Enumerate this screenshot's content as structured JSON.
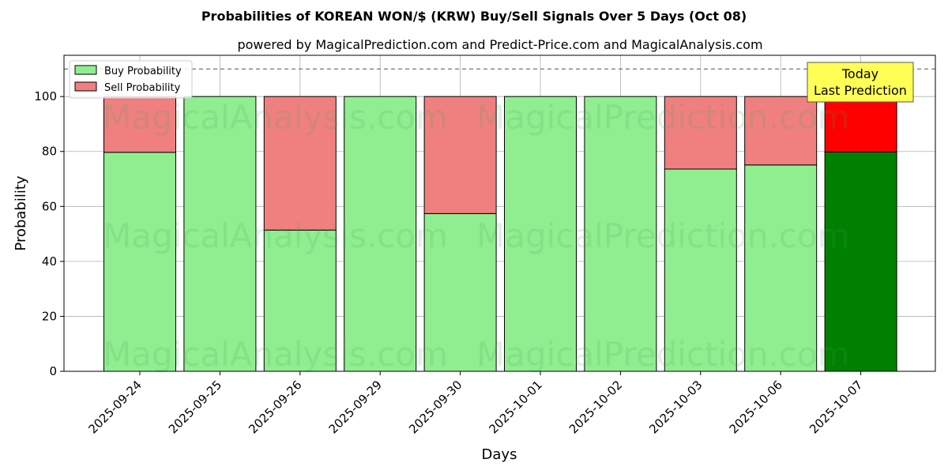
{
  "chart_data": {
    "type": "bar",
    "stacked": true,
    "title": "Probabilities of KOREAN WON/$ (KRW) Buy/Sell Signals Over 5 Days (Oct 08)",
    "subtitle": "powered by MagicalPrediction.com and Predict-Price.com and MagicalAnalysis.com",
    "xlabel": "Days",
    "ylabel": "Probability",
    "ylim": [
      0,
      115
    ],
    "yticks": [
      0,
      20,
      40,
      60,
      80,
      100
    ],
    "reference_line": 110,
    "grid": true,
    "legend_position": "top-left",
    "categories": [
      "2025-09-24",
      "2025-09-25",
      "2025-09-26",
      "2025-09-29",
      "2025-09-30",
      "2025-10-01",
      "2025-10-02",
      "2025-10-03",
      "2025-10-06",
      "2025-10-07"
    ],
    "series": [
      {
        "name": "Buy Probability",
        "color": "#90ee90",
        "highlight_color": "#008000",
        "values": [
          79.7,
          100,
          51.4,
          100,
          57.4,
          100,
          100,
          73.6,
          75.1,
          79.8
        ]
      },
      {
        "name": "Sell Probability",
        "color": "#f08080",
        "highlight_color": "#ff0000",
        "values": [
          20.3,
          0,
          48.6,
          0,
          42.6,
          0,
          0,
          26.4,
          24.9,
          20.2
        ]
      }
    ],
    "highlight_index": 9,
    "annotation": {
      "line1": "Today",
      "line2": "Last Prediction",
      "background": "#ffff55"
    },
    "watermarks": [
      "MagicalAnalysis.com",
      "MagicalPrediction.com"
    ]
  }
}
